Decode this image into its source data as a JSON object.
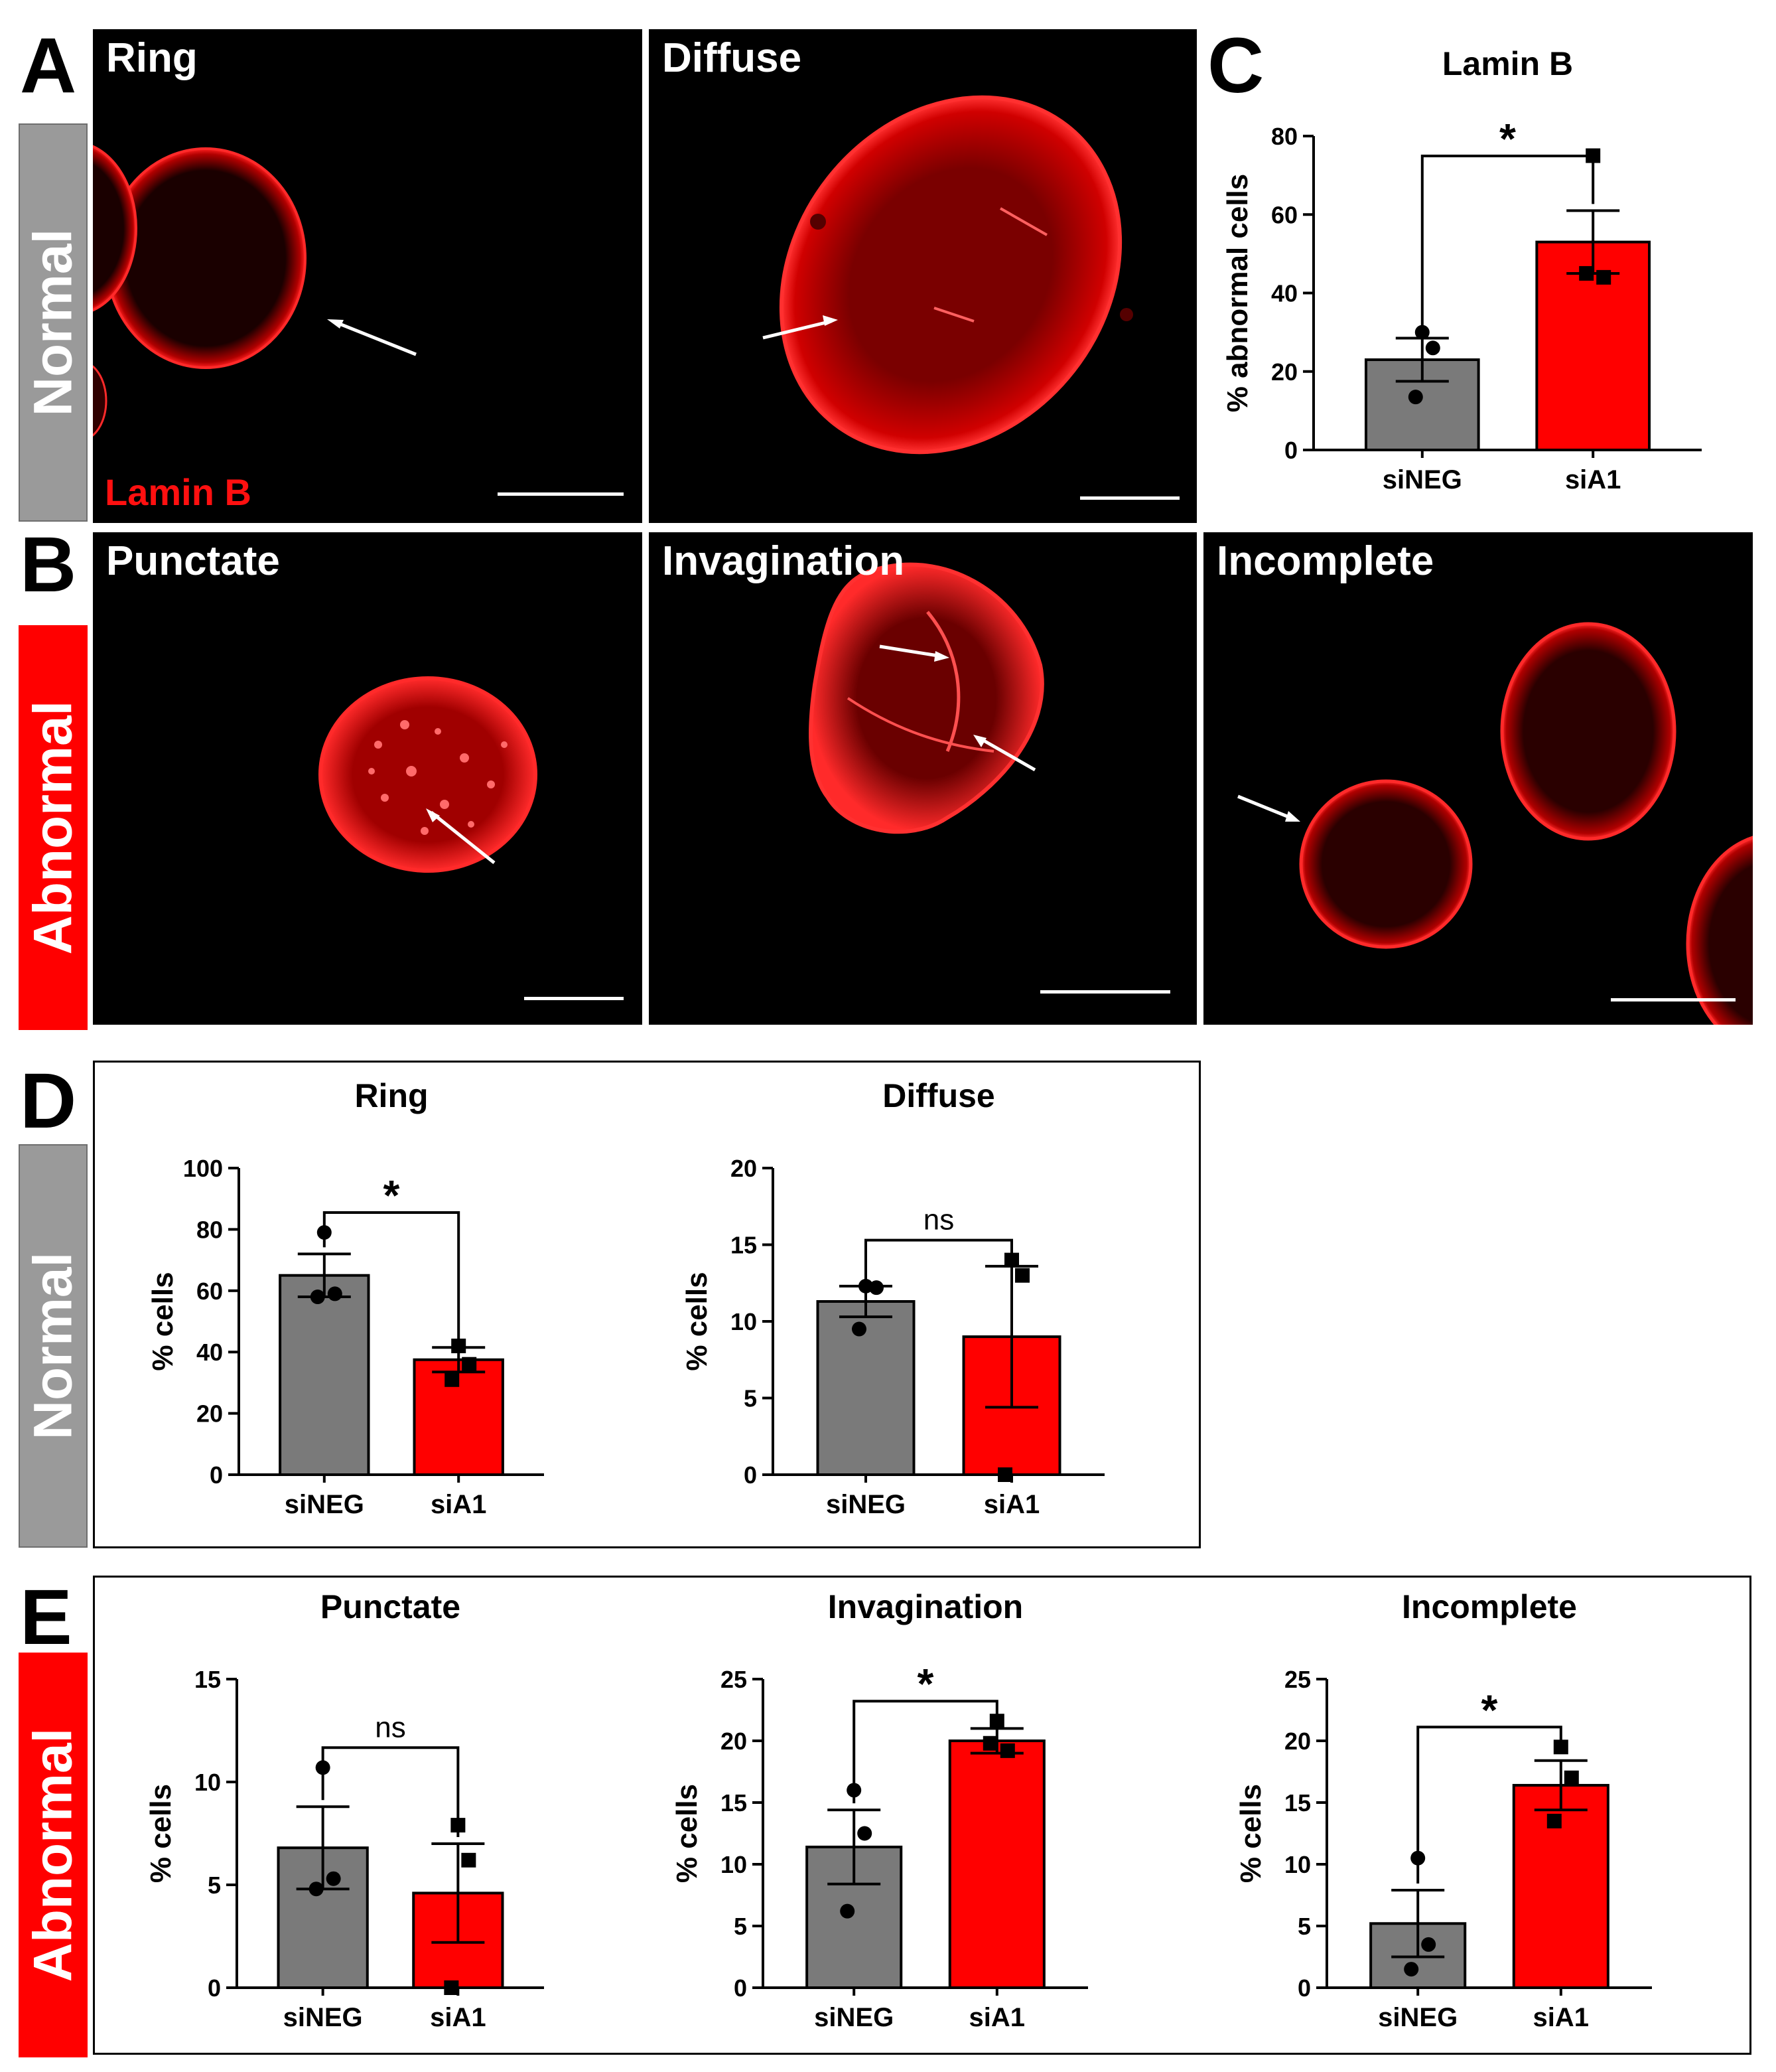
{
  "panel_letters": {
    "a": "A",
    "b": "B",
    "c": "C",
    "d": "D",
    "e": "E"
  },
  "side_labels": {
    "normal_top": "Normal",
    "abnormal_mid": "Abnormal",
    "normal_d": "Normal",
    "abnormal_e": "Abnormal"
  },
  "micrographs": {
    "ring": "Ring",
    "diffuse": "Diffuse",
    "punctate": "Punctate",
    "invagination": "Invagination",
    "incomplete": "Incomplete",
    "stain_label": "Lamin B"
  },
  "colors": {
    "control": "#7a7a7a",
    "knockdown": "#ff0000",
    "stain": "#ff1a1a"
  },
  "chart_data": [
    {
      "id": "C",
      "type": "bar",
      "title": "Lamin B",
      "ylabel": "% abnormal cells",
      "categories": [
        "siNEG",
        "siA1"
      ],
      "ylim": [
        0,
        80
      ],
      "yticks": [
        0,
        20,
        40,
        60,
        80
      ],
      "values": [
        23,
        53
      ],
      "errors": [
        5.5,
        8
      ],
      "points": [
        [
          30,
          26,
          13.5
        ],
        [
          75,
          44,
          45
        ]
      ],
      "significance": "*"
    },
    {
      "id": "D-ring",
      "type": "bar",
      "title": "Ring",
      "ylabel": "% cells",
      "categories": [
        "siNEG",
        "siA1"
      ],
      "ylim": [
        0,
        100
      ],
      "yticks": [
        0,
        20,
        40,
        60,
        80,
        100
      ],
      "values": [
        65,
        37.5
      ],
      "errors": [
        7,
        4
      ],
      "points": [
        [
          79,
          59,
          58
        ],
        [
          42,
          36,
          31
        ]
      ],
      "significance": "*"
    },
    {
      "id": "D-diffuse",
      "type": "bar",
      "title": "Diffuse",
      "ylabel": "% cells",
      "categories": [
        "siNEG",
        "siA1"
      ],
      "ylim": [
        0,
        20
      ],
      "yticks": [
        0,
        5,
        10,
        15,
        20
      ],
      "values": [
        11.3,
        9
      ],
      "errors": [
        1,
        4.6
      ],
      "points": [
        [
          12.3,
          12.2,
          9.5
        ],
        [
          14,
          13,
          0
        ]
      ],
      "significance": "ns"
    },
    {
      "id": "E-punctate",
      "type": "bar",
      "title": "Punctate",
      "ylabel": "% cells",
      "categories": [
        "siNEG",
        "siA1"
      ],
      "ylim": [
        0,
        15
      ],
      "yticks": [
        0,
        5,
        10,
        15
      ],
      "values": [
        6.8,
        4.6
      ],
      "errors": [
        2,
        2.4
      ],
      "points": [
        [
          10.7,
          5.3,
          4.8
        ],
        [
          7.9,
          6.2,
          0
        ]
      ],
      "significance": "ns"
    },
    {
      "id": "E-invagination",
      "type": "bar",
      "title": "Invagination",
      "ylabel": "% cells",
      "categories": [
        "siNEG",
        "siA1"
      ],
      "ylim": [
        0,
        25
      ],
      "yticks": [
        0,
        5,
        10,
        15,
        20,
        25
      ],
      "values": [
        11.4,
        20
      ],
      "errors": [
        3,
        1
      ],
      "points": [
        [
          16,
          12.5,
          6.2
        ],
        [
          21.6,
          19.2,
          19.8
        ]
      ],
      "significance": "*"
    },
    {
      "id": "E-incomplete",
      "type": "bar",
      "title": "Incomplete",
      "ylabel": "% cells",
      "categories": [
        "siNEG",
        "siA1"
      ],
      "ylim": [
        0,
        25
      ],
      "yticks": [
        0,
        5,
        10,
        15,
        20,
        25
      ],
      "values": [
        5.2,
        16.4
      ],
      "errors": [
        2.7,
        2
      ],
      "points": [
        [
          10.5,
          3.5,
          1.5
        ],
        [
          19.5,
          17,
          13.5
        ]
      ],
      "significance": "*"
    }
  ]
}
